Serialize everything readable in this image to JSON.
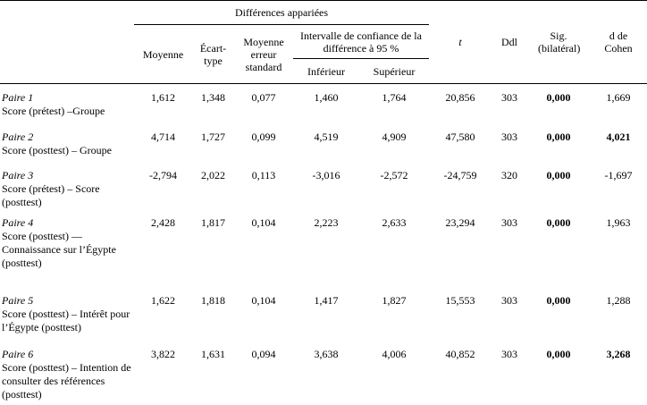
{
  "table": {
    "group_header": "Différences appariées",
    "headers": {
      "mean": "Moyenne",
      "sd": "Écart-type",
      "se": "Moyenne erreur standard",
      "ci": "Intervalle de confiance de la différence à 95 %",
      "lower": "Inférieur",
      "upper": "Supérieur",
      "t": "t",
      "df": "Ddl",
      "sig": "Sig. (bilatéral)",
      "d": "d de Cohen"
    },
    "rows": [
      {
        "pair": "Paire 1",
        "label": "Score (prétest) –Groupe",
        "cells": [
          "1,612",
          "1,348",
          "0,077",
          "1,460",
          "1,764",
          "20,856",
          "303",
          "0,000",
          "1,669"
        ]
      },
      {
        "pair": "Paire 2",
        "label": "Score (posttest) – Groupe",
        "cells": [
          "4,714",
          "1,727",
          "0,099",
          "4,519",
          "4,909",
          "47,580",
          "303",
          "0,000",
          "4,021"
        ]
      },
      {
        "pair": "Paire 3",
        "label": "Score (prétest) – Score (posttest)",
        "cells": [
          "-2,794",
          "2,022",
          "0,113",
          "-3,016",
          "-2,572",
          "-24,759",
          "320",
          "0,000",
          "-1,697"
        ]
      },
      {
        "pair": "Paire 4",
        "label": "Score (posttest) — Connaissance sur l’Égypte (posttest)",
        "cells": [
          "2,428",
          "1,817",
          "0,104",
          "2,223",
          "2,633",
          "23,294",
          "303",
          "0,000",
          "1,963"
        ]
      },
      {
        "pair": "Paire 5",
        "label": "Score (posttest) – Intérêt pour l’Égypte (posttest)",
        "cells": [
          "1,622",
          "1,818",
          "0,104",
          "1,417",
          "1,827",
          "15,553",
          "303",
          "0,000",
          "1,288"
        ]
      },
      {
        "pair": "Paire 6",
        "label": "Score (posttest) – Intention de consulter des références (posttest)",
        "cells": [
          "3,822",
          "1,631",
          "0,094",
          "3,638",
          "4,006",
          "40,852",
          "303",
          "0,000",
          "3,268"
        ]
      }
    ]
  }
}
